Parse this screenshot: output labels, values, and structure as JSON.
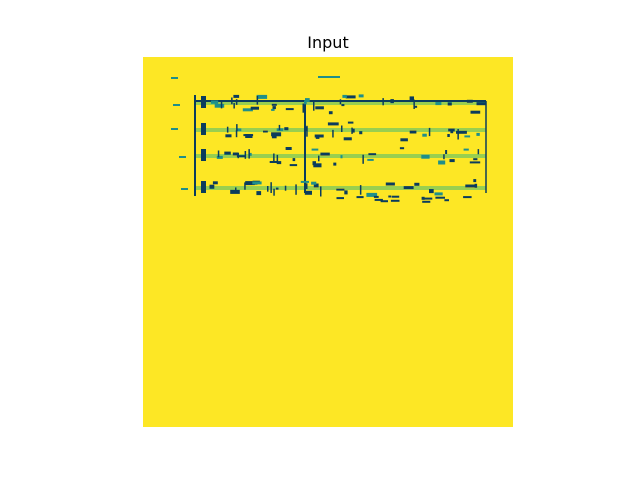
{
  "figure": {
    "title": "Input"
  },
  "colors": {
    "background": "#fde725",
    "ink_dark": "#0b3c5d",
    "ink_teal": "#1f8f8a",
    "ink_green": "#35b779"
  }
}
